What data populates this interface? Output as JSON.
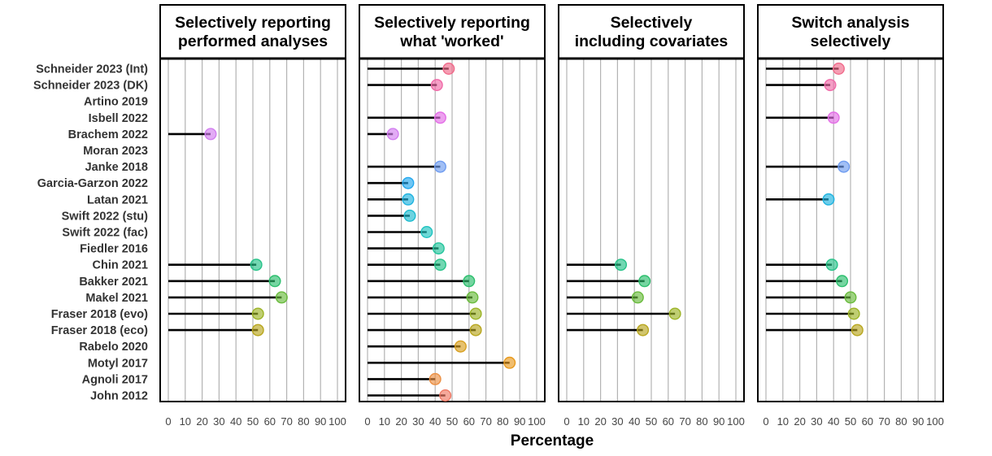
{
  "chart_data": {
    "type": "lollipop",
    "xlabel": "Percentage",
    "xlim": [
      0,
      100
    ],
    "xticks": [
      0,
      10,
      20,
      30,
      40,
      50,
      60,
      70,
      80,
      90,
      100
    ],
    "xtick_labels": [
      "0",
      "10",
      "20",
      "30",
      "40",
      "50",
      "60",
      "70",
      "80",
      "90",
      "100"
    ],
    "studies": [
      {
        "name": "Schneider 2023 (Int)",
        "color": "#f06a8a"
      },
      {
        "name": "Schneider 2023 (DK)",
        "color": "#f06aa8"
      },
      {
        "name": "Artino 2019",
        "color": "#ec6cc4"
      },
      {
        "name": "Isbell 2022",
        "color": "#e36ee6"
      },
      {
        "name": "Brachem 2022",
        "color": "#d27ef0"
      },
      {
        "name": "Moran 2023",
        "color": "#a98bf0"
      },
      {
        "name": "Janke 2018",
        "color": "#6f9cf0"
      },
      {
        "name": "Garcia-Garzon 2022",
        "color": "#23a8ee"
      },
      {
        "name": "Latan 2021",
        "color": "#20b4e0"
      },
      {
        "name": "Swift 2022 (stu)",
        "color": "#1ebcd0"
      },
      {
        "name": "Swift 2022 (fac)",
        "color": "#1ec3c0"
      },
      {
        "name": "Fiedler 2016",
        "color": "#24c49c"
      },
      {
        "name": "Chin 2021",
        "color": "#26c288"
      },
      {
        "name": "Bakker 2021",
        "color": "#2dbf6e"
      },
      {
        "name": "Makel 2021",
        "color": "#6abb3e"
      },
      {
        "name": "Fraser 2018 (evo)",
        "color": "#9cb426"
      },
      {
        "name": "Fraser 2018 (eco)",
        "color": "#b8a61e"
      },
      {
        "name": "Rabelo 2020",
        "color": "#d8a020"
      },
      {
        "name": "Motyl  2017",
        "color": "#e89a1e"
      },
      {
        "name": "Agnoli 2017",
        "color": "#ec9044"
      },
      {
        "name": "John 2012",
        "color": "#f07a66"
      }
    ],
    "panels": [
      {
        "title_lines": [
          "Selectively reporting",
          "performed analyses"
        ],
        "values": [
          null,
          null,
          null,
          null,
          25,
          null,
          null,
          null,
          null,
          null,
          null,
          null,
          52,
          63,
          67,
          53,
          53,
          null,
          null,
          null,
          null
        ]
      },
      {
        "title_lines": [
          "Selectively reporting",
          "what 'worked'"
        ],
        "values": [
          48,
          41,
          null,
          43,
          15,
          null,
          43,
          24,
          24,
          25,
          35,
          42,
          43,
          60,
          62,
          64,
          64,
          55,
          84,
          40,
          46
        ]
      },
      {
        "title_lines": [
          "Selectively",
          "including covariates"
        ],
        "values": [
          null,
          null,
          null,
          null,
          null,
          null,
          null,
          null,
          null,
          null,
          null,
          null,
          32,
          46,
          42,
          64,
          45,
          null,
          null,
          null,
          null
        ]
      },
      {
        "title_lines": [
          "Switch analysis",
          "selectively"
        ],
        "values": [
          43,
          38,
          null,
          40,
          null,
          null,
          46,
          null,
          37,
          null,
          null,
          null,
          39,
          45,
          50,
          52,
          54,
          null,
          null,
          null,
          null
        ]
      }
    ]
  }
}
